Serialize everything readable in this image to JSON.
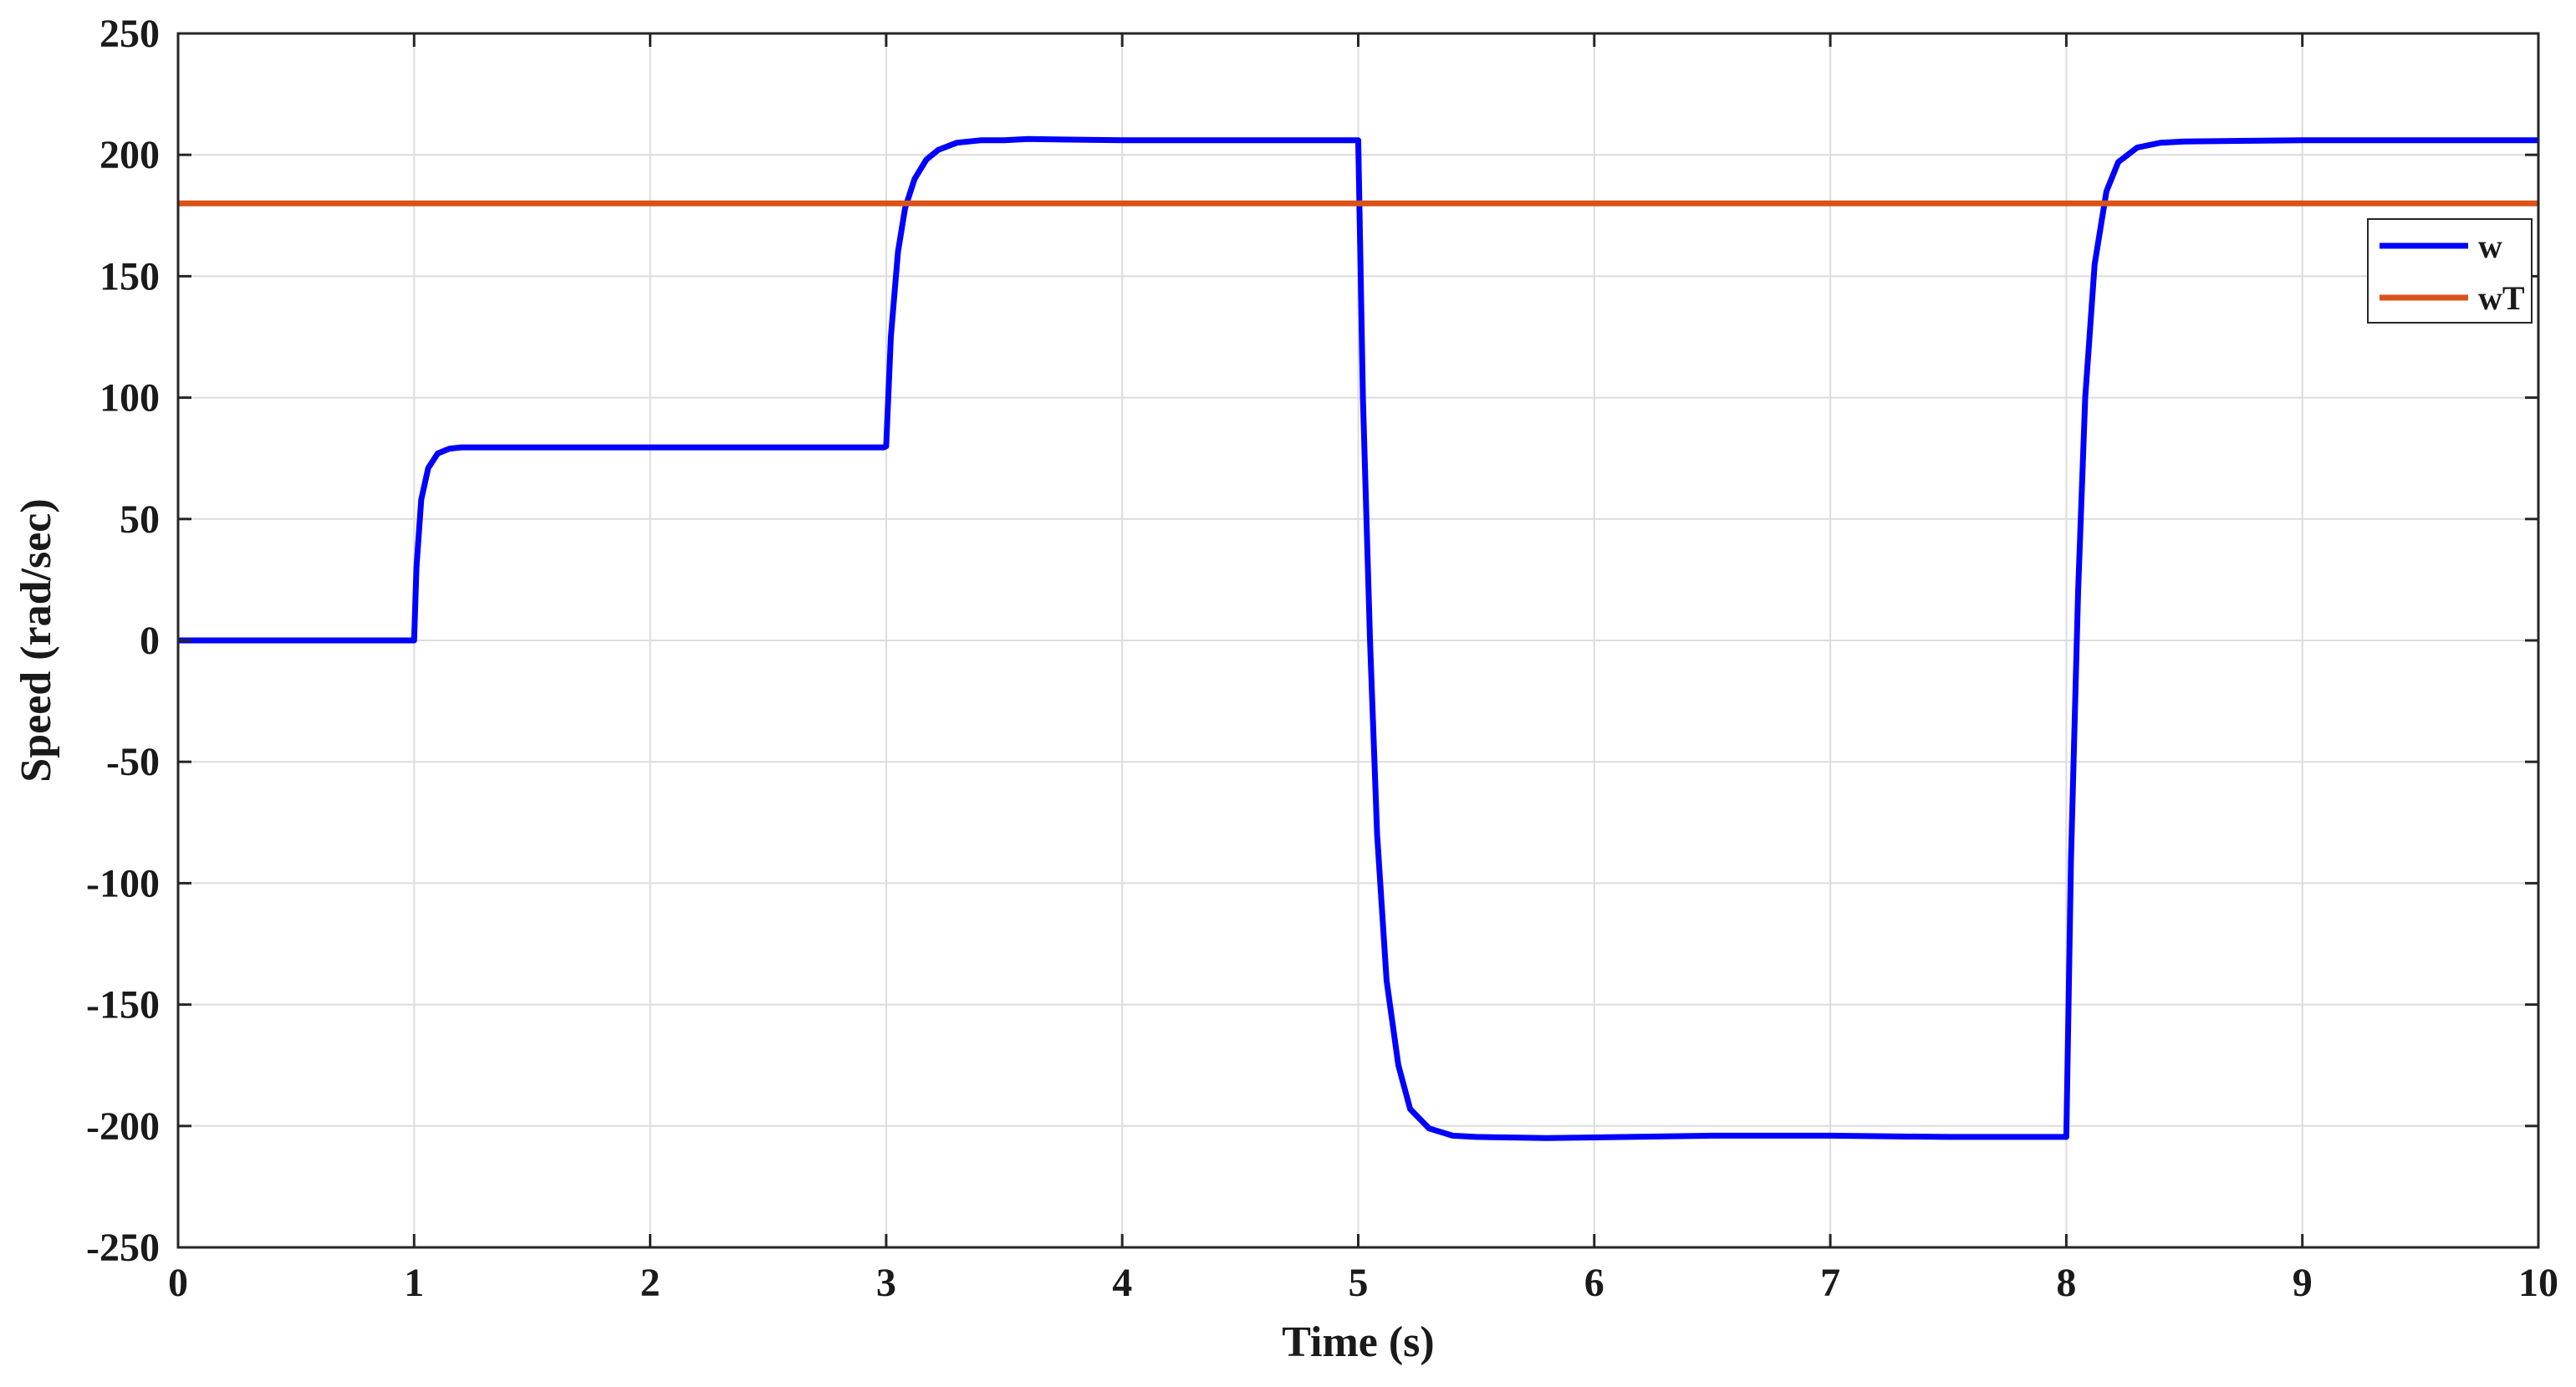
{
  "chart_data": {
    "type": "line",
    "title": "",
    "xlabel": "Time (s)",
    "ylabel": "Speed (rad/sec)",
    "xlim": [
      0,
      10
    ],
    "ylim": [
      -250,
      250
    ],
    "xticks": [
      0,
      1,
      2,
      3,
      4,
      5,
      6,
      7,
      8,
      9,
      10
    ],
    "yticks": [
      250,
      200,
      150,
      100,
      50,
      0,
      -50,
      -100,
      -150,
      -200,
      -250
    ],
    "grid": true,
    "legend": {
      "placement": "top-right",
      "entries": [
        "w",
        "wT"
      ]
    },
    "series": [
      {
        "name": "w",
        "color": "#0000ff",
        "x": [
          0,
          0.99,
          1.0,
          1.01,
          1.03,
          1.06,
          1.1,
          1.15,
          1.2,
          1.3,
          1.5,
          2.0,
          2.5,
          2.99,
          3.0,
          3.02,
          3.05,
          3.08,
          3.12,
          3.17,
          3.22,
          3.3,
          3.4,
          3.5,
          3.6,
          4.0,
          4.5,
          4.99,
          5.0,
          5.02,
          5.05,
          5.08,
          5.12,
          5.17,
          5.22,
          5.3,
          5.4,
          5.5,
          5.8,
          6.5,
          7.0,
          7.5,
          7.99,
          8.0,
          8.02,
          8.05,
          8.08,
          8.12,
          8.17,
          8.22,
          8.3,
          8.4,
          8.5,
          9.0,
          9.5,
          10.0
        ],
        "y": [
          0,
          0,
          0,
          30,
          58,
          71,
          77,
          79,
          79.5,
          79.5,
          79.5,
          79.5,
          79.5,
          79.5,
          80,
          125,
          160,
          178,
          190,
          198,
          202,
          205,
          206,
          206,
          206.5,
          206,
          206,
          206,
          206,
          100,
          0,
          -80,
          -140,
          -175,
          -193,
          -201,
          -204,
          -204.5,
          -205,
          -204,
          -204,
          -204.5,
          -204.5,
          -204.5,
          -90,
          20,
          100,
          155,
          185,
          197,
          203,
          205,
          205.5,
          206,
          206,
          206
        ]
      },
      {
        "name": "wT",
        "color": "#d95319",
        "x": [
          0,
          10
        ],
        "y": [
          180,
          180
        ]
      }
    ]
  }
}
